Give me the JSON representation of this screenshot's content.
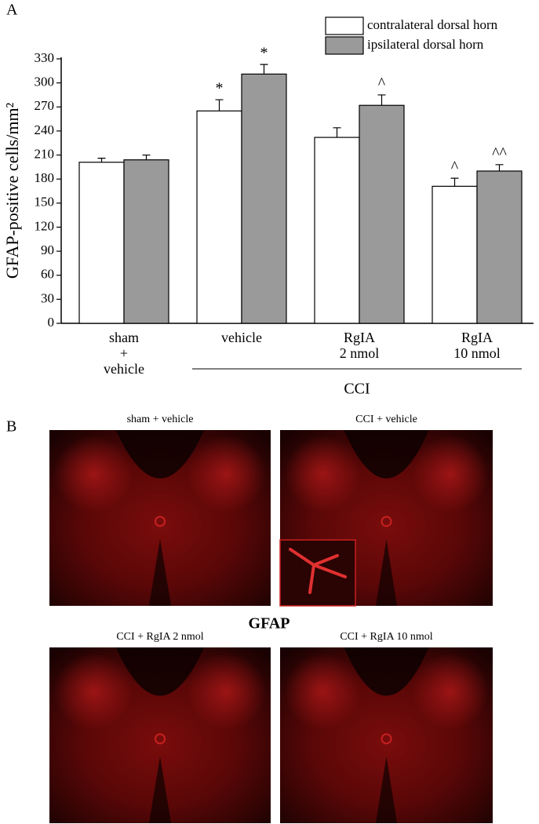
{
  "panel_a_label": "A",
  "chart_data": {
    "type": "bar",
    "y_label": "GFAP-positive cells/mm²",
    "categories": [
      "sham\n+\nvehicle",
      "vehicle",
      "RgIA\n2 nmol",
      "RgIA\n10 nmol"
    ],
    "group_label": "CCI",
    "series": [
      {
        "name": "contralateral dorsal horn",
        "color": "#ffffff",
        "values": [
          201,
          265,
          232,
          171
        ],
        "errors": [
          5,
          14,
          12,
          10
        ],
        "labels": [
          null,
          "*",
          null,
          "^"
        ]
      },
      {
        "name": "ipsilateral dorsal horn",
        "color": "#9a9a9a",
        "values": [
          204,
          311,
          272,
          190
        ],
        "errors": [
          6,
          12,
          13,
          8
        ],
        "labels": [
          null,
          "*",
          "^",
          "^^"
        ]
      }
    ],
    "ylim": [
      0,
      330
    ],
    "yticks": [
      0,
      30,
      60,
      90,
      120,
      150,
      180,
      210,
      240,
      270,
      300,
      330
    ],
    "legend": "top-right",
    "grid": false
  },
  "panel_b": {
    "label": "B",
    "stain": "GFAP",
    "images": [
      "sham + vehicle",
      "CCI + vehicle",
      "CCI + RgIA 2 nmol",
      "CCI + RgIA 10 nmol"
    ]
  }
}
